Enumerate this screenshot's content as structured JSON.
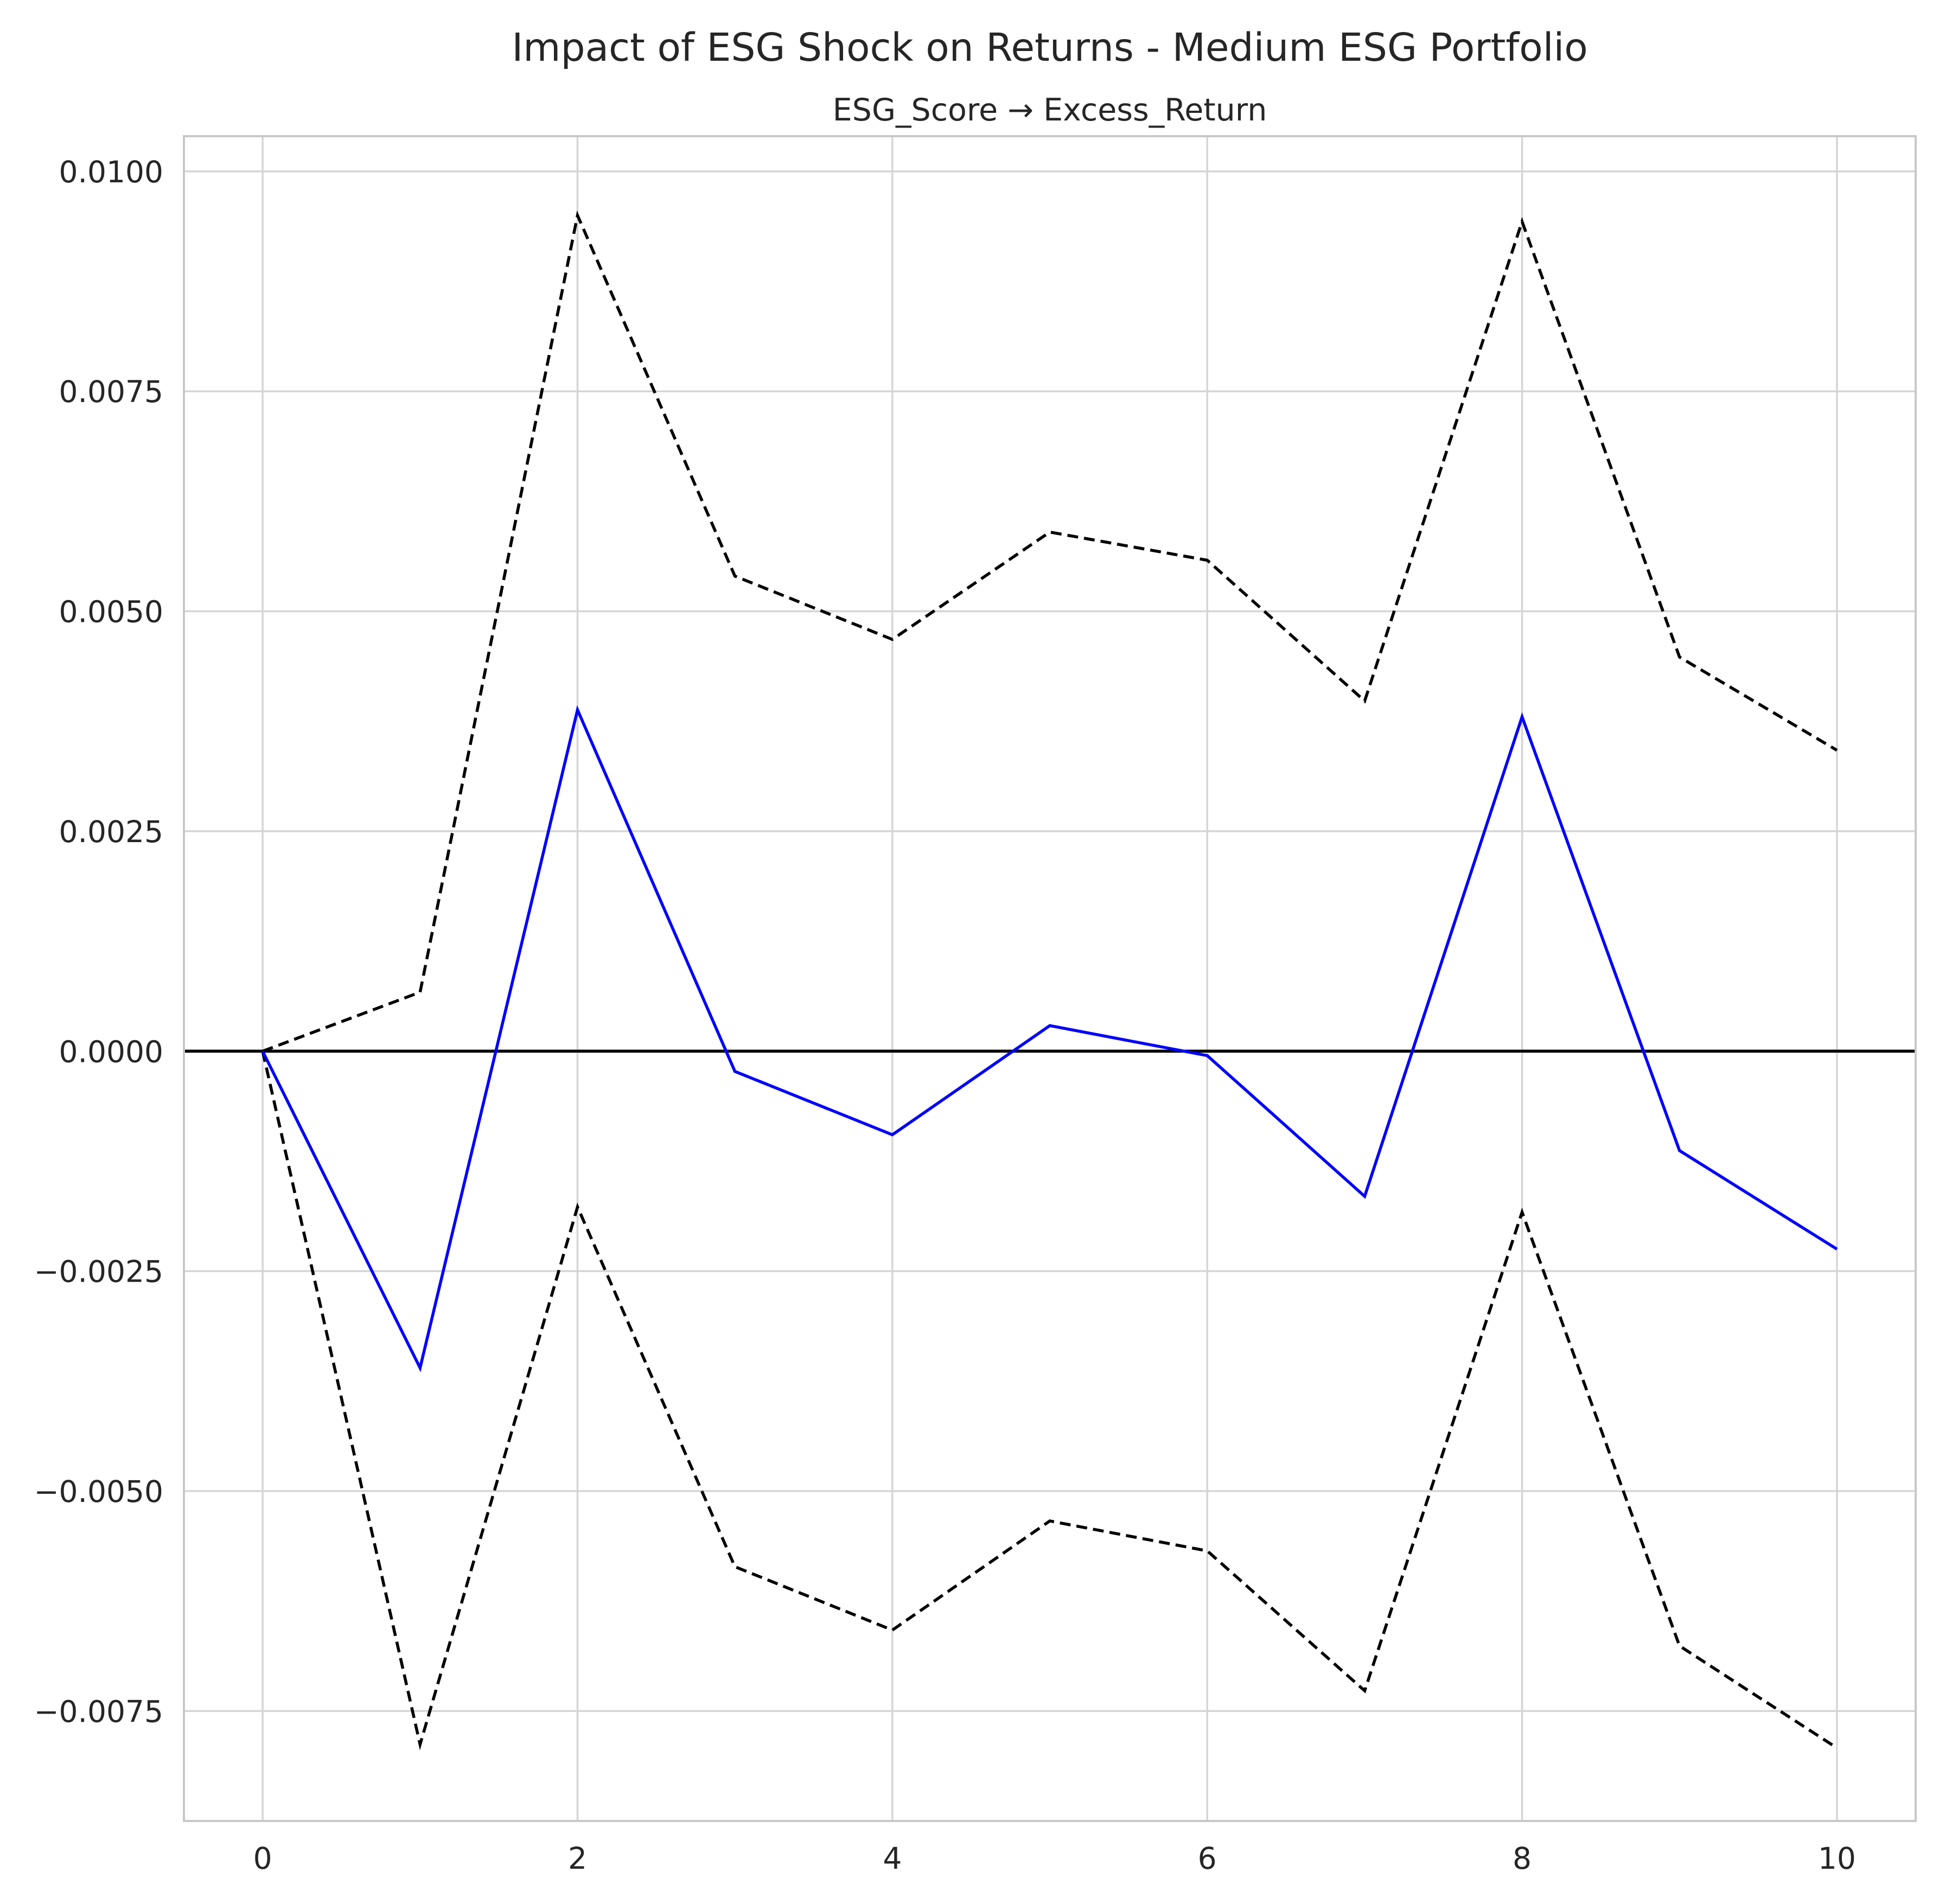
{
  "chart_data": {
    "type": "line",
    "title": "Impact of ESG Shock on Returns - Medium ESG Portfolio",
    "subtitle": "ESG_Score → Excess_Return",
    "xlabel": "",
    "ylabel": "",
    "xlim": [
      -0.5,
      10.5
    ],
    "ylim": [
      -0.00875,
      0.0104
    ],
    "grid": true,
    "zero_line": true,
    "x_ticks": [
      0,
      2,
      4,
      6,
      8,
      10
    ],
    "x_tick_labels": [
      "0",
      "2",
      "4",
      "6",
      "8",
      "10"
    ],
    "y_ticks": [
      0.01,
      0.0075,
      0.005,
      0.0025,
      0.0,
      -0.0025,
      -0.005,
      -0.0075
    ],
    "y_tick_labels": [
      "0.0100",
      "0.0075",
      "0.0050",
      "0.0025",
      "0.0000",
      "−0.0025",
      "−0.0050",
      "−0.0075"
    ],
    "x": [
      0,
      1,
      2,
      3,
      4,
      5,
      6,
      7,
      8,
      9,
      10
    ],
    "series": [
      {
        "role": "response",
        "color": "#0000ff",
        "style": "solid",
        "values": [
          0.0,
          -0.0036,
          0.00388,
          -0.00023,
          -0.00095,
          0.00029,
          -5e-05,
          -0.00165,
          0.0038,
          -0.00113,
          -0.00225
        ]
      },
      {
        "role": "upper-bound",
        "color": "#000000",
        "style": "dashed",
        "values": [
          0.0,
          0.00067,
          0.0095,
          0.0054,
          0.00468,
          0.0059,
          0.00558,
          0.00398,
          0.00943,
          0.00448,
          0.00342
        ]
      },
      {
        "role": "lower-bound",
        "color": "#000000",
        "style": "dashed",
        "values": [
          0.0,
          -0.00788,
          -0.00177,
          -0.00586,
          -0.00658,
          -0.00534,
          -0.00568,
          -0.00727,
          -0.00183,
          -0.00676,
          -0.00792
        ]
      }
    ]
  }
}
